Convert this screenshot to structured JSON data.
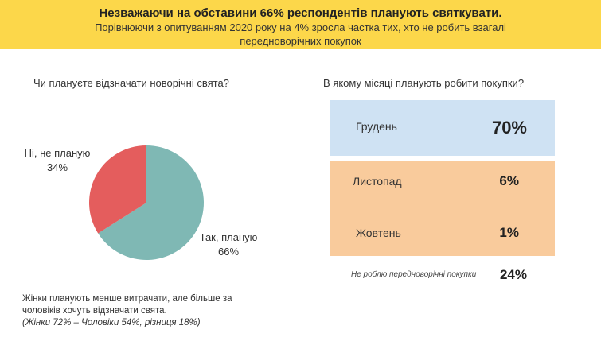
{
  "header": {
    "title": "Незважаючи на обставини 66% респондентів  планують святкувати.",
    "subtitle_line1": "Порівнюючи з опитуванням 2020 року на 4% зросла частка тих, хто не робить взагалі",
    "subtitle_line2": "передноворічних покупок",
    "background_color": "#fcd74a"
  },
  "chart_data": [
    {
      "type": "pie",
      "title": "Чи плануєте відзначати новорічні свята?",
      "slices": [
        {
          "label": "Так, плануєте",
          "label_text": "Так, планую",
          "value": 66,
          "value_label": "66%",
          "color": "#7fb8b4"
        },
        {
          "label": "Ні, не плануєте",
          "label_text": "Ні, не планую",
          "value": 34,
          "value_label": "34%",
          "color": "#e45d5d"
        }
      ]
    },
    {
      "type": "table",
      "title": "В якому місяці планують робити покупки?",
      "rows": [
        {
          "label": "Грудень",
          "value": 70,
          "value_label": "70%",
          "group_color": "#cfe2f3"
        },
        {
          "label": "Листопад",
          "value": 6,
          "value_label": "6%",
          "group_color": "#f9cb9c"
        },
        {
          "label": "Жовтень",
          "value": 1,
          "value_label": "1%",
          "group_color": "#f9cb9c"
        },
        {
          "label": "Не роблю передноворічні покупки",
          "value": 24,
          "value_label": "24%",
          "group_color": "#ffffff"
        }
      ]
    }
  ],
  "note": {
    "line1": "Жінки планують менше витрачати, але більше за",
    "line2": "чоловіків хочуть відзначати свята.",
    "line3": "(Жінки 72% – Чоловіки 54%, різниця 18%)"
  }
}
